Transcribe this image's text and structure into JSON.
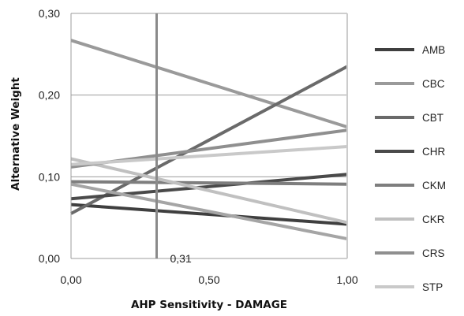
{
  "chart_data": {
    "type": "line",
    "title": "",
    "xlabel": "AHP Sensitivity - DAMAGE",
    "ylabel": "Alternative Weight",
    "xlim": [
      0,
      1
    ],
    "ylim": [
      0,
      0.3
    ],
    "x_ticks": [
      "0,00",
      "0,50",
      "1,00"
    ],
    "x_tick_values": [
      0,
      0.5,
      1
    ],
    "y_ticks": [
      "0,00",
      "0,10",
      "0,20",
      "0,30"
    ],
    "y_tick_values": [
      0,
      0.1,
      0.2,
      0.3
    ],
    "grid": "horizontal",
    "legend_position": "right",
    "marker": {
      "x": 0.31,
      "label": "0,31"
    },
    "series": [
      {
        "name": "AMB",
        "color": "#3f3f3f",
        "x": [
          0,
          1
        ],
        "y": [
          0.066,
          0.042
        ]
      },
      {
        "name": "CBC",
        "color": "#9a9a9a",
        "x": [
          0,
          1
        ],
        "y": [
          0.267,
          0.161
        ]
      },
      {
        "name": "CBT",
        "color": "#6a6a6a",
        "x": [
          0,
          1
        ],
        "y": [
          0.055,
          0.235
        ]
      },
      {
        "name": "CHR",
        "color": "#4a4a4a",
        "x": [
          0,
          1
        ],
        "y": [
          0.073,
          0.103
        ]
      },
      {
        "name": "CKM",
        "color": "#7e7e7e",
        "x": [
          0,
          1
        ],
        "y": [
          0.094,
          0.091
        ]
      },
      {
        "name": "CKR",
        "color": "#c0c0c0",
        "x": [
          0,
          1
        ],
        "y": [
          0.122,
          0.044
        ]
      },
      {
        "name": "CRS",
        "color": "#8f8f8f",
        "x": [
          0,
          1
        ],
        "y": [
          0.112,
          0.157
        ]
      },
      {
        "name": "STP",
        "color": "#c9c9c9",
        "x": [
          0,
          1
        ],
        "y": [
          0.115,
          0.137
        ]
      },
      {
        "name": "",
        "color": "#a5a5a5",
        "x": [
          0,
          1
        ],
        "y": [
          0.091,
          0.024
        ]
      }
    ]
  }
}
